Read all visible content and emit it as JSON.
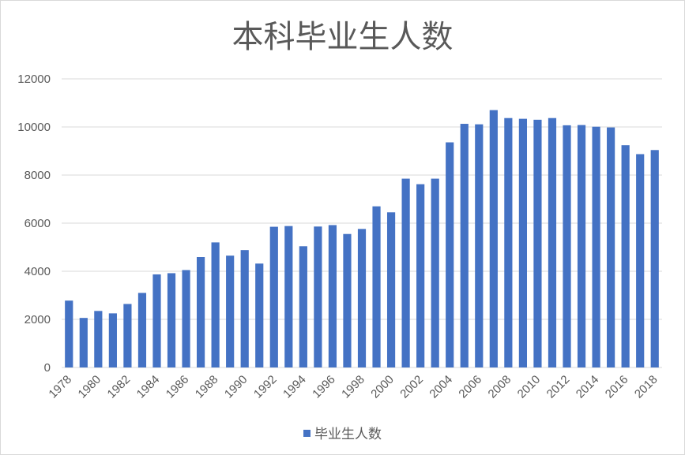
{
  "chart_data": {
    "type": "bar",
    "title": "本科毕业生人数",
    "xlabel": "",
    "ylabel": "",
    "ylim": [
      0,
      12000
    ],
    "yticks": [
      0,
      2000,
      4000,
      6000,
      8000,
      10000,
      12000
    ],
    "grid": true,
    "legend": "bottom",
    "color": "#4472c4",
    "categories": [
      "1978",
      "1979",
      "1980",
      "1981",
      "1982",
      "1983",
      "1984",
      "1985",
      "1986",
      "1987",
      "1988",
      "1989",
      "1990",
      "1991",
      "1992",
      "1993",
      "1994",
      "1995",
      "1996",
      "1997",
      "1998",
      "1999",
      "2000",
      "2001",
      "2002",
      "2003",
      "2004",
      "2005",
      "2006",
      "2007",
      "2008",
      "2009",
      "2010",
      "2011",
      "2012",
      "2013",
      "2014",
      "2015",
      "2016",
      "2017",
      "2018"
    ],
    "series": [
      {
        "name": "毕业生人数",
        "values": [
          2780,
          2060,
          2350,
          2250,
          2640,
          3100,
          3870,
          3920,
          4050,
          4590,
          5200,
          4650,
          4880,
          4320,
          5850,
          5880,
          5040,
          5860,
          5920,
          5550,
          5760,
          6700,
          6450,
          7850,
          7620,
          7850,
          9360,
          10130,
          10110,
          10700,
          10370,
          10340,
          10300,
          10370,
          10070,
          10080,
          10010,
          9980,
          9240,
          8870,
          9040
        ]
      }
    ]
  }
}
